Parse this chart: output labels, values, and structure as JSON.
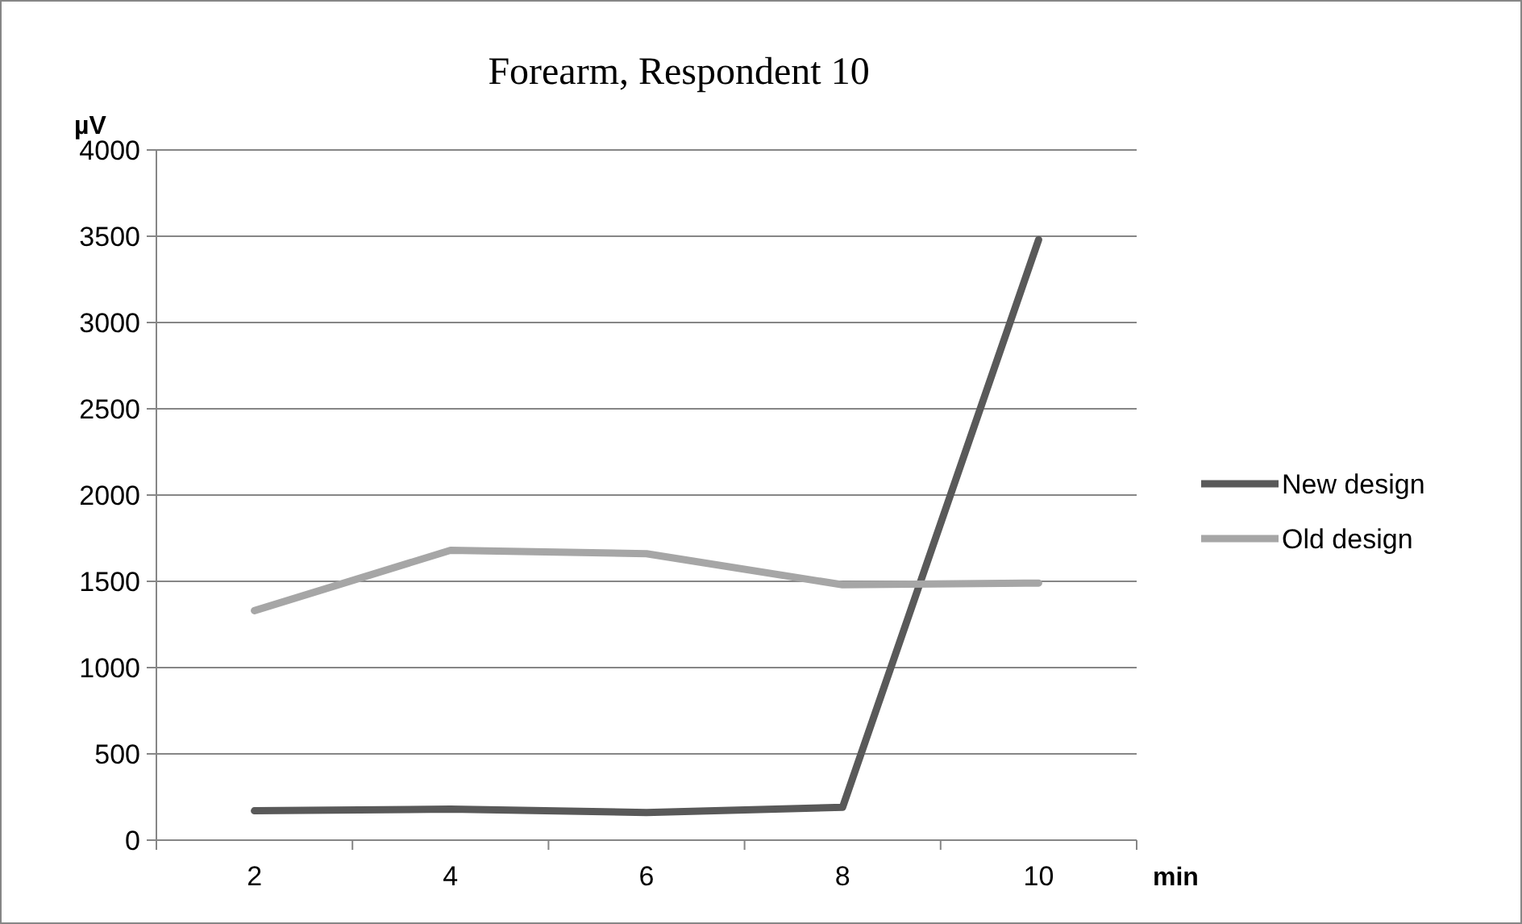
{
  "chart_data": {
    "type": "line",
    "title": "Forearm, Respondent 10",
    "xlabel": "min",
    "ylabel": "µV",
    "categories": [
      "2",
      "4",
      "6",
      "8",
      "10"
    ],
    "series": [
      {
        "name": "New design",
        "color": "#595959",
        "values": [
          170,
          180,
          160,
          190,
          3480
        ]
      },
      {
        "name": "Old design",
        "color": "#a6a6a6",
        "values": [
          1330,
          1680,
          1660,
          1480,
          1490
        ]
      }
    ],
    "ylim": [
      0,
      4000
    ],
    "yticks": [
      0,
      500,
      1000,
      1500,
      2000,
      2500,
      3000,
      3500,
      4000
    ],
    "grid": "y",
    "legend": "right",
    "marker": "none",
    "line_style": "solid"
  }
}
